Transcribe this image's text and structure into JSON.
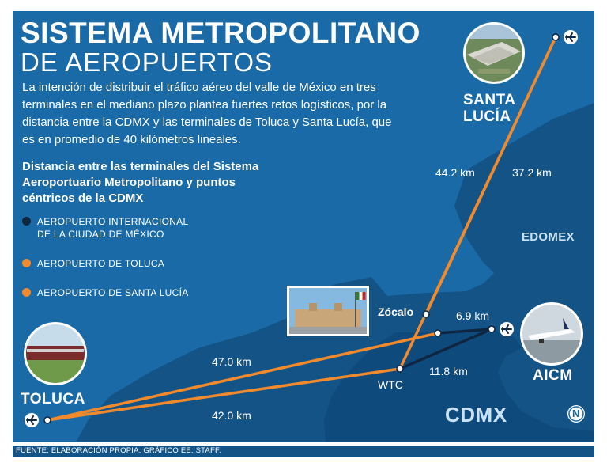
{
  "header": {
    "title_line1": "SISTEMA METROPOLITANO",
    "title_line2": "DE AEROPUERTOS",
    "intro": "La intención de distribuir el tráfico aéreo del valle de México en tres terminales en el mediano plazo plantea fuertes retos logísticos, por la distancia entre la CDMX y las terminales de Toluca y Santa Lucía, que es en promedio de 40 kilómetros lineales."
  },
  "legend": {
    "title": "Distancia entre las terminales del Sistema Aeroportuario Metropolitano y puntos céntricos de la CDMX",
    "items": [
      {
        "label": "AEROPUERTO INTERNACIONAL\nDE LA CIUDAD DE MÉXICO",
        "color": "#0f2642"
      },
      {
        "label": "AEROPUERTO DE TOLUCA",
        "color": "#f08a2d"
      },
      {
        "label": "AEROPUERTO DE SANTA LUCÍA",
        "color": "#f08a2d"
      }
    ]
  },
  "places": {
    "santa_lucia": "SANTA\nLUCÍA",
    "toluca": "TOLUCA",
    "aicm": "AICM",
    "zocalo": "Zócalo",
    "wtc": "WTC",
    "edomex": "EDOMEX",
    "cdmx": "CDMX"
  },
  "distances": {
    "santa_lucia_zocalo": "44.2 km",
    "santa_lucia_wtc": "37.2 km",
    "toluca_zocalo": "47.0 km",
    "toluca_wtc": "42.0 km",
    "aicm_zocalo": "6.9 km",
    "aicm_wtc": "11.8 km"
  },
  "compass": "N",
  "colors": {
    "background": "#1a6aa8",
    "edomex_region": "#145386",
    "cdmx_region": "#0f4a7c",
    "orange_route": "#f08a2d",
    "navy_route": "#0f2642",
    "light_label": "#c9e2f5"
  },
  "footer": "FUENTE: ELABORACIÓN PROPIA. GRÁFICO EE: STAFF."
}
